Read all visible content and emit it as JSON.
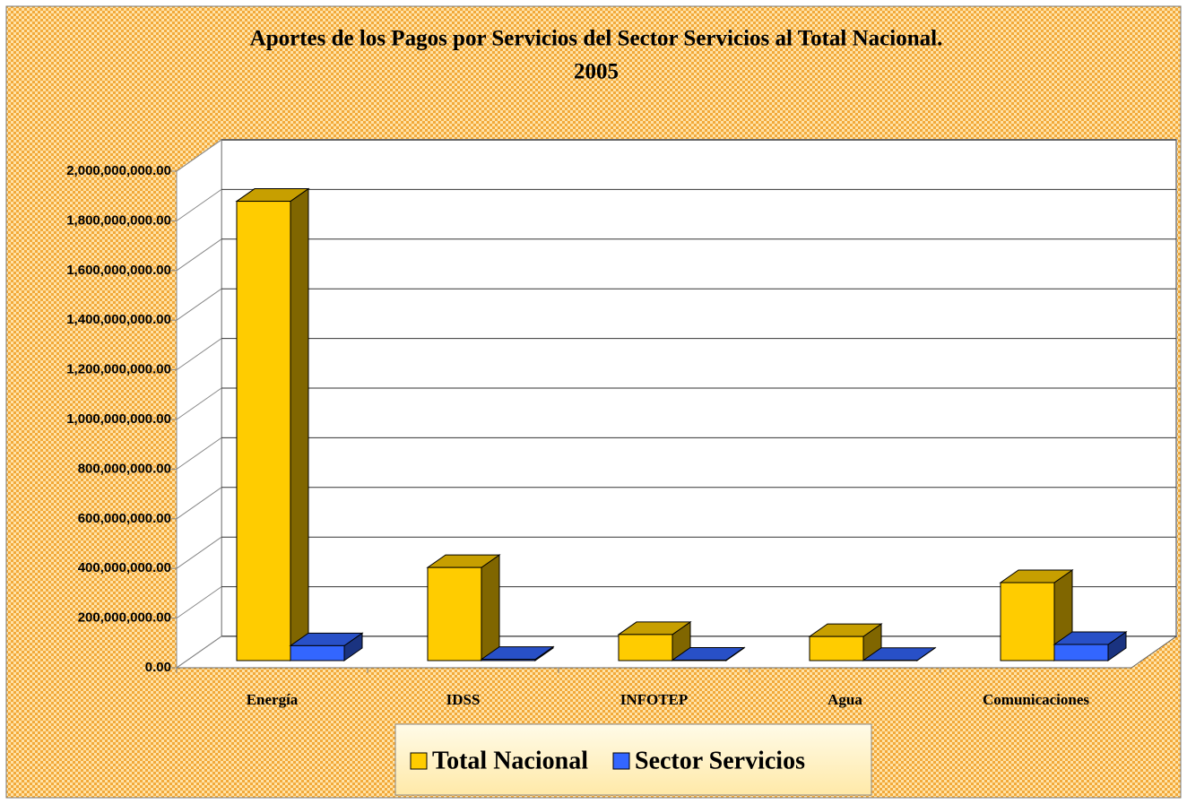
{
  "chart_data": {
    "type": "bar3d",
    "title": [
      "Aportes de los Pagos por Servicios del Sector Servicios al Total Nacional.",
      "2005"
    ],
    "categories": [
      "Energía",
      "IDSS",
      "INFOTEP",
      "Agua",
      "Comunicaciones"
    ],
    "series": [
      {
        "name": "Total Nacional",
        "color": "#ffcc00",
        "values": [
          1850000000,
          375000000,
          105000000,
          97000000,
          314000000
        ]
      },
      {
        "name": "Sector Servicios",
        "color": "#3366ff",
        "values": [
          60000000,
          5000000,
          2000000,
          1000000,
          65000000
        ]
      }
    ],
    "ylim": [
      0,
      2000000000
    ],
    "yticks": [
      {
        "value": 0,
        "label": "0.00"
      },
      {
        "value": 200000000,
        "label": "200,000,000.00"
      },
      {
        "value": 400000000,
        "label": "400,000,000.00"
      },
      {
        "value": 600000000,
        "label": "600,000,000.00"
      },
      {
        "value": 800000000,
        "label": "800,000,000.00"
      },
      {
        "value": 1000000000,
        "label": "1,000,000,000.00"
      },
      {
        "value": 1200000000,
        "label": "1,200,000,000.00"
      },
      {
        "value": 1400000000,
        "label": "1,400,000,000.00"
      },
      {
        "value": 1600000000,
        "label": "1,600,000,000.00"
      },
      {
        "value": 1800000000,
        "label": "1,800,000,000.00"
      },
      {
        "value": 2000000000,
        "label": "2,000,000,000.00"
      }
    ],
    "grid": true,
    "legend": "bottom"
  }
}
